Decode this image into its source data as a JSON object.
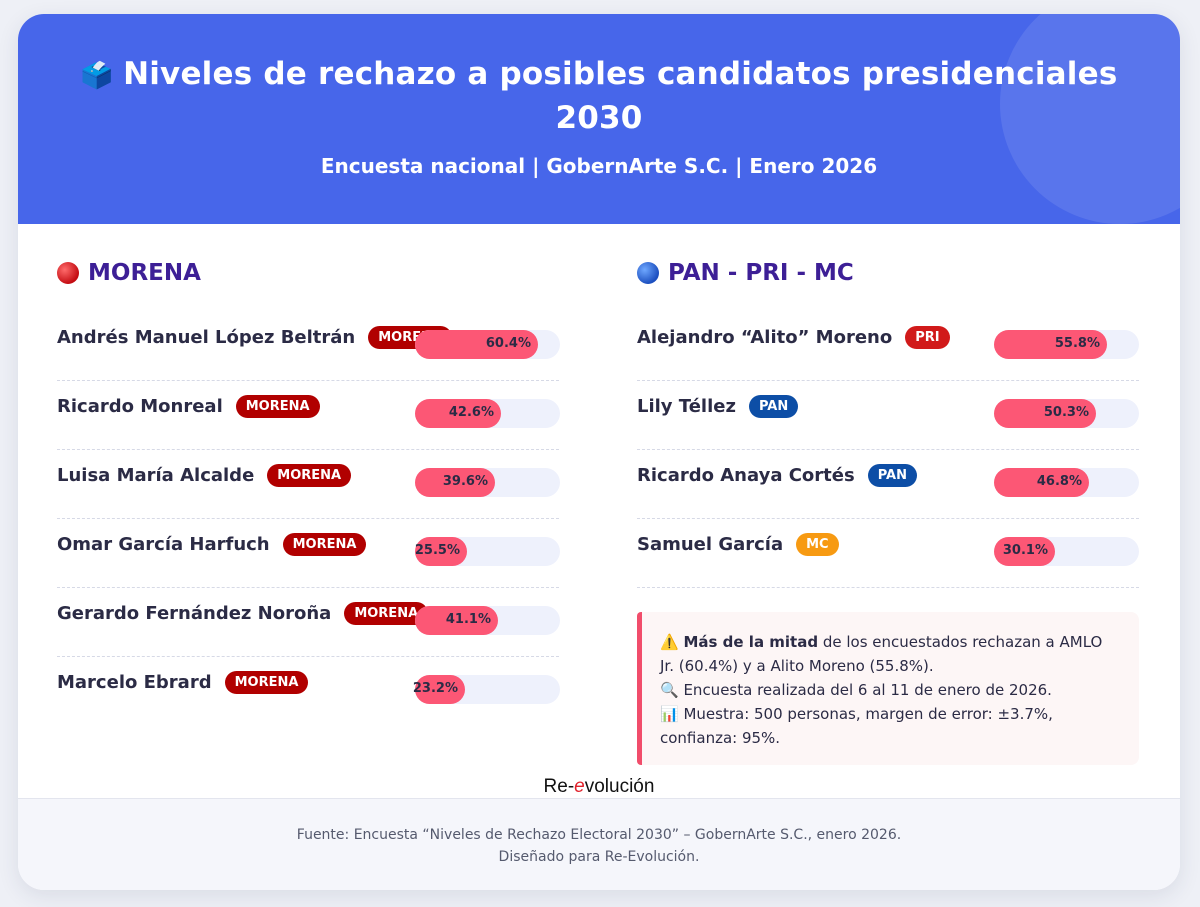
{
  "header": {
    "icon": "🗳️",
    "title_line1": "Niveles de rechazo a posibles candidatos presidenciales",
    "title_line2": "2030",
    "subtitle": "Encuesta nacional | GobernArte S.C. | Enero 2026"
  },
  "colors": {
    "header_bg": "#4766ea",
    "bar_fill": "#fc5775",
    "bar_track": "#eef1fc",
    "section_title": "#3d1f96",
    "MORENA": "#b10000",
    "PRI": "#d11a1a",
    "PAN": "#0d4ea6",
    "MC": "#f79a12"
  },
  "left": {
    "title": "MORENA",
    "icon": "red-circle-icon"
  },
  "right": {
    "title": "PAN - PRI - MC",
    "icon": "blue-circle-icon"
  },
  "chart_data": [
    {
      "type": "bar",
      "categories": [
        "Andrés Manuel López Beltrán",
        "Ricardo Monreal",
        "Luisa María Alcalde",
        "Omar García Harfuch",
        "Gerardo Fernández Noroña",
        "Marcelo Ebrard"
      ],
      "parties": [
        "MORENA",
        "MORENA",
        "MORENA",
        "MORENA",
        "MORENA",
        "MORENA"
      ],
      "values": [
        60.4,
        42.6,
        39.6,
        25.5,
        41.1,
        23.2
      ],
      "labels": [
        "60.4%",
        "42.6%",
        "39.6%",
        "25.5%",
        "41.1%",
        "23.2%"
      ],
      "ylim": [
        0,
        100
      ]
    },
    {
      "type": "bar",
      "categories": [
        "Alejandro “Alito” Moreno",
        "Lily Téllez",
        "Ricardo Anaya Cortés",
        "Samuel García"
      ],
      "parties": [
        "PRI",
        "PAN",
        "PAN",
        "MC"
      ],
      "values": [
        55.8,
        50.3,
        46.8,
        30.1
      ],
      "labels": [
        "55.8%",
        "50.3%",
        "46.8%",
        "30.1%"
      ],
      "ylim": [
        0,
        100
      ]
    }
  ],
  "note": {
    "icon1": "⚠️",
    "line1_bold": "Más de la mitad",
    "line1_rest": " de los encuestados rechazan a AMLO Jr. (60.4%) y a Alito Moreno (55.8%).",
    "icon2": "🔍",
    "line2": " Encuesta realizada del 6 al 11 de enero de 2026.",
    "icon3": "📊",
    "line3": " Muestra: 500 personas, margen de error: ±3.7%, confianza: 95%."
  },
  "brand": {
    "part1": "Re-",
    "part2": "e",
    "part3": "volución"
  },
  "footer": {
    "line1": "Fuente: Encuesta “Niveles de Rechazo Electoral 2030” – GobernArte S.C., enero 2026.",
    "line2": "Diseñado para Re-Evolución."
  }
}
